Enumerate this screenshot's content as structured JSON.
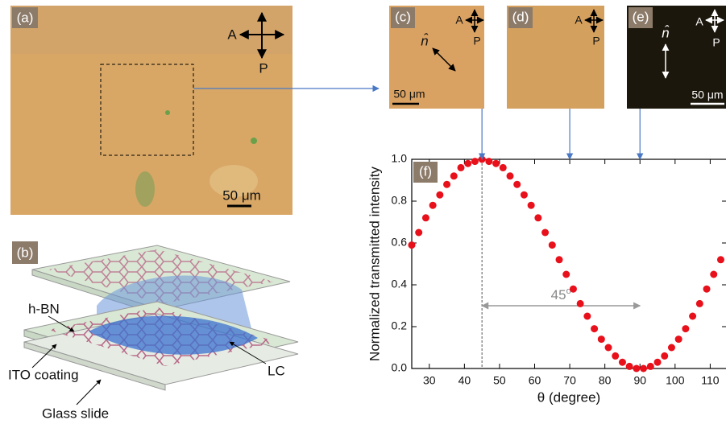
{
  "panels": {
    "a": {
      "label": "(a)",
      "analyzer": "A",
      "polarizer": "P",
      "scale": "50 μm"
    },
    "b": {
      "label": "(b)",
      "hbn": "h-BN",
      "ito": "ITO coating",
      "glass": "Glass slide",
      "lc": "LC"
    },
    "c": {
      "label": "(c)",
      "analyzer": "A",
      "polarizer": "P",
      "director": "n̂",
      "scale": "50 μm"
    },
    "d": {
      "label": "(d)",
      "analyzer": "A",
      "polarizer": "P"
    },
    "e": {
      "label": "(e)",
      "analyzer": "A",
      "polarizer": "P",
      "director": "n̂",
      "scale": "50 μm"
    }
  },
  "chart_data": {
    "type": "scatter",
    "label": "(f)",
    "x_label": "θ (degree)",
    "y_label": "Normalized transmitted intensity",
    "annotation": "45",
    "annotation_sup": "o",
    "annotation_from": 45,
    "annotation_to": 90,
    "annotation_y": 0.3,
    "arrows_x": [
      45,
      70,
      90
    ],
    "color": "#e8101a",
    "x": [
      25,
      27,
      29,
      31,
      33,
      35,
      37,
      39,
      41,
      43,
      45,
      47,
      49,
      51,
      53,
      55,
      57,
      59,
      61,
      63,
      65,
      67,
      69,
      71,
      73,
      75,
      77,
      79,
      81,
      83,
      85,
      87,
      89,
      91,
      93,
      95,
      97,
      99,
      101,
      103,
      105,
      107,
      109,
      111,
      113
    ],
    "values": [
      0.59,
      0.65,
      0.72,
      0.78,
      0.83,
      0.88,
      0.92,
      0.96,
      0.98,
      0.99,
      1,
      0.99,
      0.98,
      0.96,
      0.92,
      0.88,
      0.83,
      0.78,
      0.72,
      0.65,
      0.59,
      0.52,
      0.45,
      0.38,
      0.31,
      0.25,
      0.19,
      0.14,
      0.1,
      0.06,
      0.03,
      0.01,
      0,
      0,
      0.01,
      0.03,
      0.06,
      0.1,
      0.14,
      0.19,
      0.25,
      0.31,
      0.38,
      0.45,
      0.52
    ],
    "xlim": [
      25,
      114.5
    ],
    "ylim": [
      0,
      1
    ],
    "xticks": [
      30,
      40,
      50,
      60,
      70,
      80,
      90,
      100,
      110
    ],
    "yticks": [
      {
        "value": 0,
        "label": "0.0"
      },
      0.2,
      0.4,
      0.6,
      0.8,
      {
        "value": 1,
        "label": "1.0"
      }
    ]
  }
}
